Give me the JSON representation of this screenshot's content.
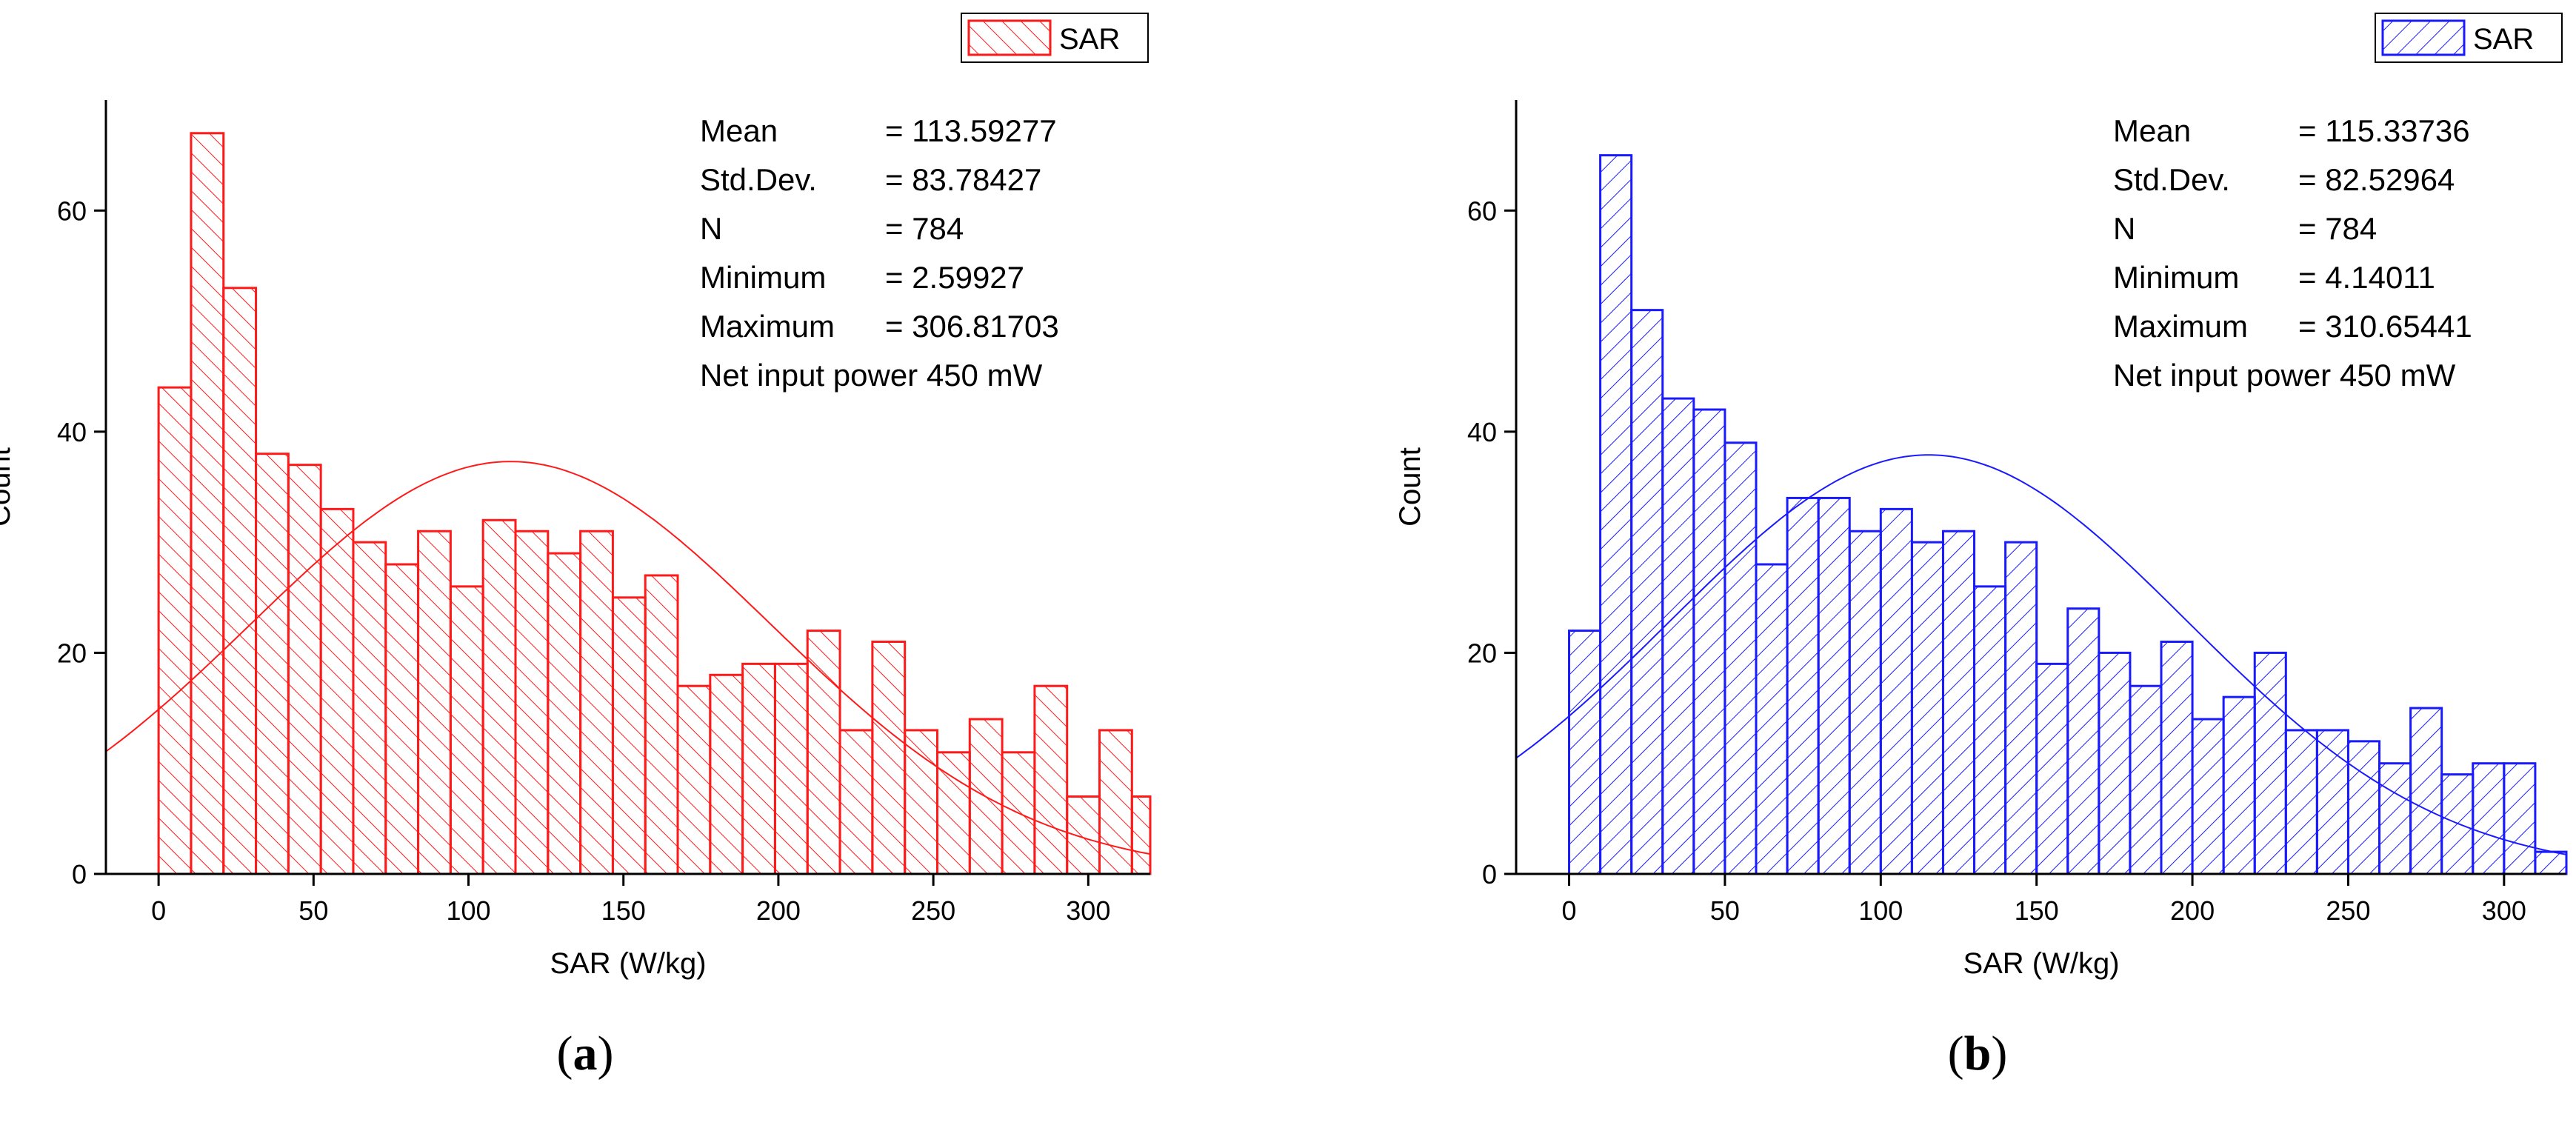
{
  "chart_data": [
    {
      "type": "bar",
      "panel": "a",
      "caption_label": "a",
      "color": "#ff1a1a",
      "legend_label": "SAR",
      "xlabel": "SAR (W/kg)",
      "ylabel": "Count",
      "xlim": [
        -17,
        320
      ],
      "ylim": [
        0,
        70
      ],
      "xticks": [
        0,
        50,
        100,
        150,
        200,
        250,
        300
      ],
      "yticks": [
        0,
        20,
        40,
        60
      ],
      "bin_width": 10.47,
      "bin_start": 0,
      "values": [
        44,
        67,
        53,
        38,
        37,
        33,
        30,
        28,
        31,
        26,
        32,
        31,
        29,
        31,
        25,
        27,
        17,
        18,
        19,
        19,
        22,
        13,
        21,
        13,
        11,
        14,
        11,
        17,
        7,
        13,
        7
      ],
      "stats": {
        "mean_label": "Mean",
        "mean_value": "= 113.59277",
        "std_label": "Std.Dev.",
        "std_value": "= 83.78427",
        "n_label": "N",
        "n_value": "= 784",
        "min_label": "Minimum",
        "min_value": "= 2.59927",
        "max_label": "Maximum",
        "max_value": "= 306.81703",
        "power_text": "Net input power 450 mW"
      },
      "fit": {
        "mean": 113.59277,
        "std": 83.78427,
        "peak": 37.3
      }
    },
    {
      "type": "bar",
      "panel": "b",
      "caption_label": "b",
      "color": "#1a1aff",
      "legend_label": "SAR",
      "xlabel": "SAR (W/kg)",
      "ylabel": "Count",
      "xlim": [
        -17,
        320
      ],
      "ylim": [
        0,
        70
      ],
      "xticks": [
        0,
        50,
        100,
        150,
        200,
        250,
        300
      ],
      "yticks": [
        0,
        20,
        40,
        60
      ],
      "bin_width": 10.0,
      "bin_start": 0,
      "values": [
        22,
        65,
        51,
        43,
        42,
        39,
        28,
        34,
        34,
        31,
        33,
        30,
        31,
        26,
        30,
        19,
        24,
        20,
        17,
        21,
        14,
        16,
        20,
        13,
        13,
        12,
        10,
        15,
        9,
        10,
        10,
        2
      ],
      "stats": {
        "mean_label": "Mean",
        "mean_value": "= 115.33736",
        "std_label": "Std.Dev.",
        "std_value": "= 82.52964",
        "n_label": "N",
        "n_value": "= 784",
        "min_label": "Minimum",
        "min_value": "= 4.14011",
        "max_label": "Maximum",
        "max_value": "= 310.65441",
        "power_text": "Net input power 450 mW"
      },
      "fit": {
        "mean": 115.33736,
        "std": 82.52964,
        "peak": 37.9
      }
    }
  ]
}
